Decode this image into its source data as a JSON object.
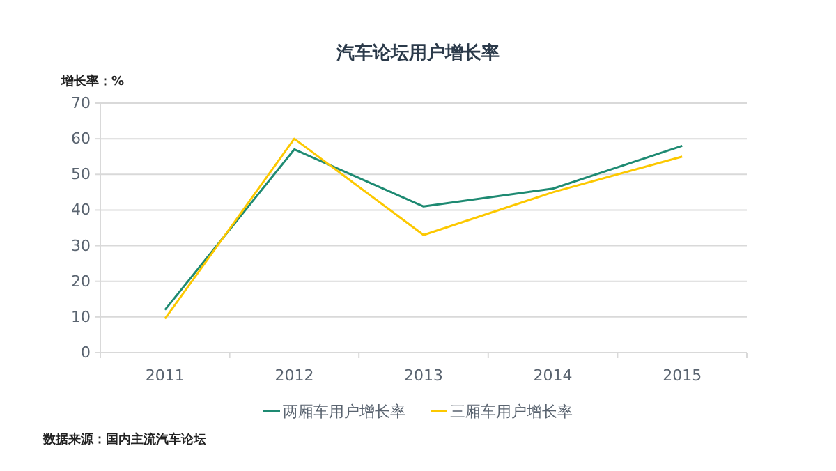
{
  "chart_data": {
    "type": "line",
    "title": "汽车论坛用户增长率",
    "ylabel": "增长率：%",
    "categories": [
      "2011",
      "2012",
      "2013",
      "2014",
      "2015"
    ],
    "series": [
      {
        "name": "两厢车用户增长率",
        "color": "#1e8a72",
        "values": [
          12,
          57,
          41,
          46,
          58
        ]
      },
      {
        "name": "三厢车用户增长率",
        "color": "#fcc800",
        "values": [
          9.5,
          60,
          33,
          45,
          55
        ]
      }
    ],
    "ylim": [
      0,
      70
    ],
    "yticks": [
      0,
      10,
      20,
      30,
      40,
      50,
      60,
      70
    ],
    "grid": "y",
    "legend": "bottom",
    "marker": "none",
    "line_style": "solid",
    "annotations": [
      "数据来源：国内主流汽车论坛"
    ]
  }
}
